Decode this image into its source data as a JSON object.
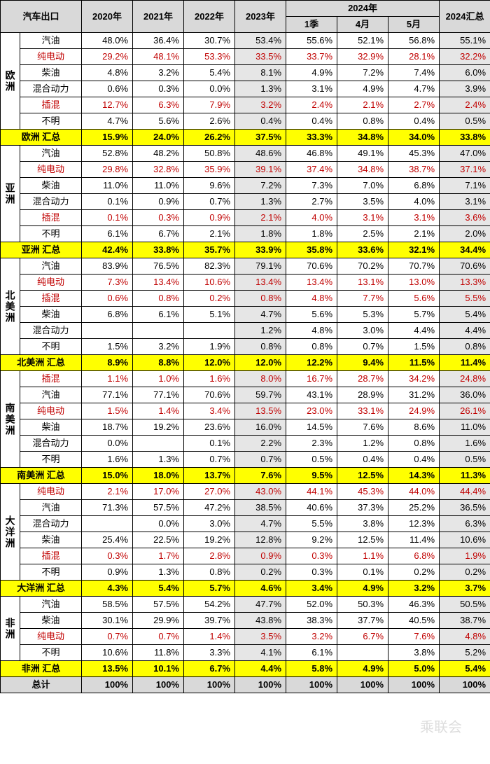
{
  "header": {
    "title": "汽车出口",
    "years": [
      "2020年",
      "2021年",
      "2022年",
      "2023年",
      "2024年",
      "2024汇总"
    ],
    "sub2024": [
      "1季",
      "4月",
      "5月"
    ]
  },
  "colors": {
    "hdr_bg": "#d9d9d9",
    "sum_bg": "#ffff00",
    "gray_col_bg": "#e6e6e6",
    "red_text": "#c00000",
    "border": "#000000"
  },
  "regions": [
    {
      "name": "欧洲",
      "rows": [
        {
          "cat": "汽油",
          "red": false,
          "v": [
            "48.0%",
            "36.4%",
            "30.7%",
            "53.4%",
            "55.6%",
            "52.1%",
            "56.8%",
            "55.1%"
          ]
        },
        {
          "cat": "纯电动",
          "red": true,
          "v": [
            "29.2%",
            "48.1%",
            "53.3%",
            "33.5%",
            "33.7%",
            "32.9%",
            "28.1%",
            "32.2%"
          ]
        },
        {
          "cat": "柴油",
          "red": false,
          "v": [
            "4.8%",
            "3.2%",
            "5.4%",
            "8.1%",
            "4.9%",
            "7.2%",
            "7.4%",
            "6.0%"
          ]
        },
        {
          "cat": "混合动力",
          "red": false,
          "v": [
            "0.6%",
            "0.3%",
            "0.0%",
            "1.3%",
            "3.1%",
            "4.9%",
            "4.7%",
            "3.9%"
          ]
        },
        {
          "cat": "插混",
          "red": true,
          "v": [
            "12.7%",
            "6.3%",
            "7.9%",
            "3.2%",
            "2.4%",
            "2.1%",
            "2.7%",
            "2.4%"
          ]
        },
        {
          "cat": "不明",
          "red": false,
          "v": [
            "4.7%",
            "5.6%",
            "2.6%",
            "0.4%",
            "0.4%",
            "0.8%",
            "0.4%",
            "0.5%"
          ]
        }
      ],
      "sum": {
        "label": "欧洲 汇总",
        "v": [
          "15.9%",
          "24.0%",
          "26.2%",
          "37.5%",
          "33.3%",
          "34.8%",
          "34.0%",
          "33.8%"
        ]
      }
    },
    {
      "name": "亚洲",
      "rows": [
        {
          "cat": "汽油",
          "red": false,
          "v": [
            "52.8%",
            "48.2%",
            "50.8%",
            "48.6%",
            "46.8%",
            "49.1%",
            "45.3%",
            "47.0%"
          ]
        },
        {
          "cat": "纯电动",
          "red": true,
          "v": [
            "29.8%",
            "32.8%",
            "35.9%",
            "39.1%",
            "37.4%",
            "34.8%",
            "38.7%",
            "37.1%"
          ]
        },
        {
          "cat": "柴油",
          "red": false,
          "v": [
            "11.0%",
            "11.0%",
            "9.6%",
            "7.2%",
            "7.3%",
            "7.0%",
            "6.8%",
            "7.1%"
          ]
        },
        {
          "cat": "混合动力",
          "red": false,
          "v": [
            "0.1%",
            "0.9%",
            "0.7%",
            "1.3%",
            "2.7%",
            "3.5%",
            "4.0%",
            "3.1%"
          ]
        },
        {
          "cat": "插混",
          "red": true,
          "v": [
            "0.1%",
            "0.3%",
            "0.9%",
            "2.1%",
            "4.0%",
            "3.1%",
            "3.1%",
            "3.6%"
          ]
        },
        {
          "cat": "不明",
          "red": false,
          "v": [
            "6.1%",
            "6.7%",
            "2.1%",
            "1.8%",
            "1.8%",
            "2.5%",
            "2.1%",
            "2.0%"
          ]
        }
      ],
      "sum": {
        "label": "亚洲 汇总",
        "v": [
          "42.4%",
          "33.8%",
          "35.7%",
          "33.9%",
          "35.8%",
          "33.6%",
          "32.1%",
          "34.4%"
        ]
      }
    },
    {
      "name": "北美洲",
      "rows": [
        {
          "cat": "汽油",
          "red": false,
          "v": [
            "83.9%",
            "76.5%",
            "82.3%",
            "79.1%",
            "70.6%",
            "70.2%",
            "70.7%",
            "70.6%"
          ]
        },
        {
          "cat": "纯电动",
          "red": true,
          "v": [
            "7.3%",
            "13.4%",
            "10.6%",
            "13.4%",
            "13.4%",
            "13.1%",
            "13.0%",
            "13.3%"
          ]
        },
        {
          "cat": "插混",
          "red": true,
          "v": [
            "0.6%",
            "0.8%",
            "0.2%",
            "0.8%",
            "4.8%",
            "7.7%",
            "5.6%",
            "5.5%"
          ]
        },
        {
          "cat": "柴油",
          "red": false,
          "v": [
            "6.8%",
            "6.1%",
            "5.1%",
            "4.7%",
            "5.6%",
            "5.3%",
            "5.7%",
            "5.4%"
          ]
        },
        {
          "cat": "混合动力",
          "red": false,
          "v": [
            "",
            "",
            "",
            "1.2%",
            "4.8%",
            "3.0%",
            "4.4%",
            "4.4%"
          ]
        },
        {
          "cat": "不明",
          "red": false,
          "v": [
            "1.5%",
            "3.2%",
            "1.9%",
            "0.8%",
            "0.8%",
            "0.7%",
            "1.5%",
            "0.8%"
          ]
        }
      ],
      "sum": {
        "label": "北美洲 汇总",
        "v": [
          "8.9%",
          "8.8%",
          "12.0%",
          "12.0%",
          "12.2%",
          "9.4%",
          "11.5%",
          "11.4%"
        ]
      }
    },
    {
      "name": "南美洲",
      "rows": [
        {
          "cat": "插混",
          "red": true,
          "v": [
            "1.1%",
            "1.0%",
            "1.6%",
            "8.0%",
            "16.7%",
            "28.7%",
            "34.2%",
            "24.8%"
          ]
        },
        {
          "cat": "汽油",
          "red": false,
          "v": [
            "77.1%",
            "77.1%",
            "70.6%",
            "59.7%",
            "43.1%",
            "28.9%",
            "31.2%",
            "36.0%"
          ]
        },
        {
          "cat": "纯电动",
          "red": true,
          "v": [
            "1.5%",
            "1.4%",
            "3.4%",
            "13.5%",
            "23.0%",
            "33.1%",
            "24.9%",
            "26.1%"
          ]
        },
        {
          "cat": "柴油",
          "red": false,
          "v": [
            "18.7%",
            "19.2%",
            "23.6%",
            "16.0%",
            "14.5%",
            "7.6%",
            "8.6%",
            "11.0%"
          ]
        },
        {
          "cat": "混合动力",
          "red": false,
          "v": [
            "0.0%",
            "",
            "0.1%",
            "2.2%",
            "2.3%",
            "1.2%",
            "0.8%",
            "1.6%"
          ]
        },
        {
          "cat": "不明",
          "red": false,
          "v": [
            "1.6%",
            "1.3%",
            "0.7%",
            "0.7%",
            "0.5%",
            "0.4%",
            "0.4%",
            "0.5%"
          ]
        }
      ],
      "sum": {
        "label": "南美洲 汇总",
        "v": [
          "15.0%",
          "18.0%",
          "13.7%",
          "7.6%",
          "9.5%",
          "12.5%",
          "14.3%",
          "11.3%"
        ]
      }
    },
    {
      "name": "大洋洲",
      "rows": [
        {
          "cat": "纯电动",
          "red": true,
          "v": [
            "2.1%",
            "17.0%",
            "27.0%",
            "43.0%",
            "44.1%",
            "45.3%",
            "44.0%",
            "44.4%"
          ]
        },
        {
          "cat": "汽油",
          "red": false,
          "v": [
            "71.3%",
            "57.5%",
            "47.2%",
            "38.5%",
            "40.6%",
            "37.3%",
            "25.2%",
            "36.5%"
          ]
        },
        {
          "cat": "混合动力",
          "red": false,
          "v": [
            "",
            "0.0%",
            "3.0%",
            "4.7%",
            "5.5%",
            "3.8%",
            "12.3%",
            "6.3%"
          ]
        },
        {
          "cat": "柴油",
          "red": false,
          "v": [
            "25.4%",
            "22.5%",
            "19.2%",
            "12.8%",
            "9.2%",
            "12.5%",
            "11.4%",
            "10.6%"
          ]
        },
        {
          "cat": "插混",
          "red": true,
          "v": [
            "0.3%",
            "1.7%",
            "2.8%",
            "0.9%",
            "0.3%",
            "1.1%",
            "6.8%",
            "1.9%"
          ]
        },
        {
          "cat": "不明",
          "red": false,
          "v": [
            "0.9%",
            "1.3%",
            "0.8%",
            "0.2%",
            "0.3%",
            "0.1%",
            "0.2%",
            "0.2%"
          ]
        }
      ],
      "sum": {
        "label": "大洋洲 汇总",
        "v": [
          "4.3%",
          "5.4%",
          "5.7%",
          "4.6%",
          "3.4%",
          "4.9%",
          "3.2%",
          "3.7%"
        ]
      }
    },
    {
      "name": "非洲",
      "rows": [
        {
          "cat": "汽油",
          "red": false,
          "v": [
            "58.5%",
            "57.5%",
            "54.2%",
            "47.7%",
            "52.0%",
            "50.3%",
            "46.3%",
            "50.5%"
          ]
        },
        {
          "cat": "柴油",
          "red": false,
          "v": [
            "30.1%",
            "29.9%",
            "39.7%",
            "43.8%",
            "38.3%",
            "37.7%",
            "40.5%",
            "38.7%"
          ]
        },
        {
          "cat": "纯电动",
          "red": true,
          "v": [
            "0.7%",
            "0.7%",
            "1.4%",
            "3.5%",
            "3.2%",
            "6.7%",
            "7.6%",
            "4.8%"
          ]
        },
        {
          "cat": "不明",
          "red": false,
          "v": [
            "10.6%",
            "11.8%",
            "3.3%",
            "4.1%",
            "6.1%",
            "",
            "3.8%",
            "5.2%"
          ]
        }
      ],
      "sum": {
        "label": "非洲 汇总",
        "v": [
          "13.5%",
          "10.1%",
          "6.7%",
          "4.4%",
          "5.8%",
          "4.9%",
          "5.0%",
          "5.4%"
        ]
      }
    }
  ],
  "grand_total": {
    "label": "总计",
    "v": [
      "100%",
      "100%",
      "100%",
      "100%",
      "100%",
      "100%",
      "100%",
      "100%"
    ]
  },
  "watermark": "乘联会"
}
